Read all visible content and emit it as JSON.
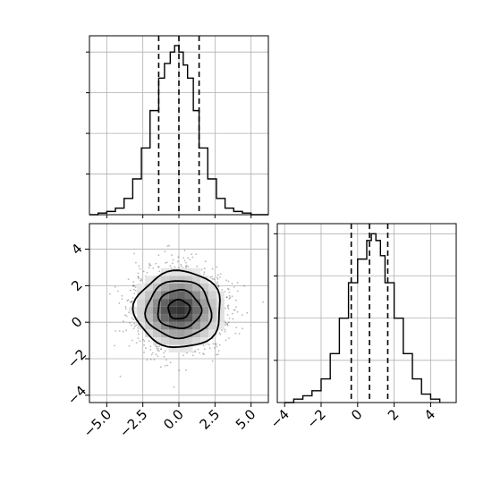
{
  "chart_data": [
    {
      "panel": "x histogram",
      "type": "bar",
      "style": "step histogram, black outline",
      "xlim": [
        -6.2,
        6.2
      ],
      "ylim": [
        0,
        1.1
      ],
      "bin_edges": [
        -6.2,
        -5.6,
        -5.0,
        -4.4,
        -3.8,
        -3.2,
        -2.6,
        -2.0,
        -1.4,
        -1.0,
        -0.6,
        -0.3,
        0.0,
        0.3,
        0.6,
        1.0,
        1.4,
        2.0,
        2.6,
        3.2,
        3.8,
        4.4,
        5.0,
        5.6,
        6.2
      ],
      "values": [
        0,
        0.01,
        0.02,
        0.04,
        0.1,
        0.22,
        0.41,
        0.64,
        0.84,
        0.93,
        1.0,
        1.04,
        1.0,
        0.92,
        0.84,
        0.64,
        0.41,
        0.22,
        0.1,
        0.04,
        0.02,
        0.01,
        0.0,
        0.0
      ],
      "quantile_lines": [
        -1.4,
        0.0,
        1.4
      ],
      "grid": true,
      "yticks_labeled": false
    },
    {
      "panel": "2D density",
      "type": "heatmap",
      "style": "scatter points + shaded 2D histogram + contours",
      "xlim": [
        -6.2,
        6.2
      ],
      "ylim": [
        -4.4,
        5.4
      ],
      "center": [
        0.0,
        0.7
      ],
      "spread": [
        1.5,
        1.05
      ],
      "contour_levels": [
        0.5,
        1.0,
        1.5,
        2.0
      ],
      "xticks": [
        -5.0,
        -2.5,
        0.0,
        2.5,
        5.0
      ],
      "xtick_labels": [
        "−5.0",
        "−2.5",
        "0.0",
        "2.5",
        "5.0"
      ],
      "yticks": [
        -4,
        -2,
        0,
        2,
        4
      ],
      "ytick_labels": [
        "−4",
        "−2",
        "0",
        "2",
        "4"
      ],
      "grid": true
    },
    {
      "panel": "y histogram",
      "type": "bar",
      "style": "step histogram, black outline",
      "xlim": [
        -4.4,
        5.4
      ],
      "ylim": [
        0,
        1.06
      ],
      "bin_edges": [
        -4.0,
        -3.5,
        -3.0,
        -2.5,
        -2.0,
        -1.5,
        -1.0,
        -0.5,
        0.0,
        0.5,
        0.75,
        1.0,
        1.25,
        1.5,
        2.0,
        2.5,
        3.0,
        3.5,
        4.0,
        4.5
      ],
      "values": [
        0.0,
        0.02,
        0.04,
        0.07,
        0.14,
        0.29,
        0.5,
        0.71,
        0.85,
        0.96,
        1.0,
        0.96,
        0.87,
        0.71,
        0.5,
        0.29,
        0.14,
        0.05,
        0.02
      ],
      "quantile_lines": [
        -0.35,
        0.65,
        1.65
      ],
      "xticks": [
        -4,
        -2,
        0,
        2,
        4
      ],
      "xtick_labels": [
        "−4",
        "−2",
        "0",
        "2",
        "4"
      ],
      "grid": true,
      "yticks_labeled": false
    }
  ]
}
